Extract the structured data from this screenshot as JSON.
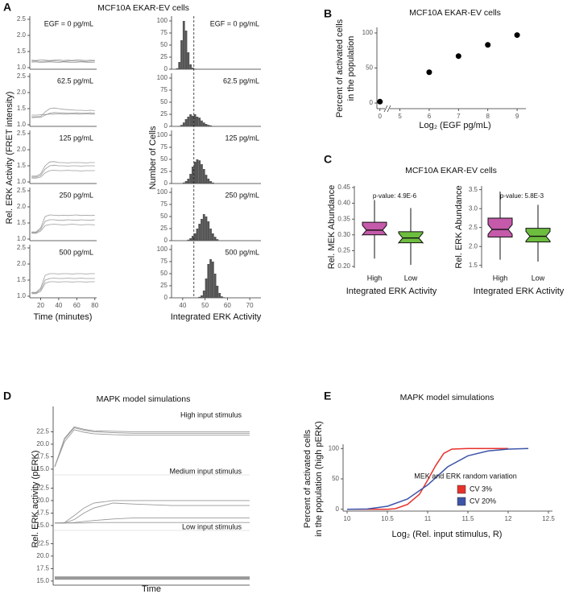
{
  "chart_data": [
    {
      "type": "line_panels",
      "label": "A",
      "title": "MCF10A EKAR-EV cells",
      "xlabel": "Time (minutes)",
      "ylabel": "Rel. ERK Activity (FRET intensity)",
      "xlim": [
        8,
        82
      ],
      "xticks": [
        20,
        40,
        60,
        80
      ],
      "ylim": [
        0.95,
        2.6
      ],
      "yticks": [
        {
          "value": 1.0,
          "label": "1.0"
        },
        1.5,
        {
          "value": 2.0,
          "label": "2.0"
        },
        2.5
      ],
      "color": "#8a8a8a",
      "x": [
        10,
        15,
        20,
        25,
        30,
        35,
        40,
        45,
        50,
        55,
        60,
        65,
        70,
        75,
        80
      ],
      "panels": [
        {
          "label": "EGF = 0 pg/mL",
          "series": [
            {
              "values": [
                1.2,
                1.21,
                1.19,
                1.2,
                1.2,
                1.21,
                1.2,
                1.19,
                1.2,
                1.21,
                1.2,
                1.2,
                1.19,
                1.2,
                1.21
              ]
            },
            {
              "values": [
                1.23,
                1.22,
                1.24,
                1.23,
                1.22,
                1.23,
                1.24,
                1.22,
                1.23,
                1.22,
                1.24,
                1.23,
                1.22,
                1.23,
                1.22
              ]
            },
            {
              "values": [
                1.17,
                1.18,
                1.16,
                1.17,
                1.18,
                1.17,
                1.16,
                1.18,
                1.17,
                1.16,
                1.17,
                1.18,
                1.17,
                1.16,
                1.17
              ]
            }
          ]
        },
        {
          "label": "62.5 pg/mL",
          "series": [
            {
              "values": [
                1.25,
                1.25,
                1.26,
                1.4,
                1.5,
                1.52,
                1.5,
                1.48,
                1.47,
                1.46,
                1.45,
                1.45,
                1.44,
                1.45,
                1.44
              ]
            },
            {
              "values": [
                1.3,
                1.3,
                1.31,
                1.32,
                1.33,
                1.33,
                1.34,
                1.33,
                1.33,
                1.34,
                1.33,
                1.33,
                1.34,
                1.33,
                1.33
              ]
            },
            {
              "values": [
                1.22,
                1.23,
                1.23,
                1.3,
                1.36,
                1.38,
                1.37,
                1.37,
                1.36,
                1.36,
                1.37,
                1.36,
                1.36,
                1.37,
                1.36
              ]
            }
          ]
        },
        {
          "label": "125 pg/mL",
          "series": [
            {
              "values": [
                1.15,
                1.15,
                1.2,
                1.4,
                1.5,
                1.52,
                1.5,
                1.5,
                1.49,
                1.5,
                1.5,
                1.49,
                1.5,
                1.5,
                1.5
              ]
            },
            {
              "values": [
                1.18,
                1.18,
                1.25,
                1.5,
                1.62,
                1.63,
                1.6,
                1.6,
                1.59,
                1.6,
                1.6,
                1.6,
                1.59,
                1.6,
                1.6
              ]
            },
            {
              "values": [
                1.12,
                1.12,
                1.15,
                1.28,
                1.35,
                1.36,
                1.35,
                1.35,
                1.36,
                1.35,
                1.35,
                1.34,
                1.35,
                1.35,
                1.35
              ]
            }
          ]
        },
        {
          "label": "250 pg/mL",
          "series": [
            {
              "values": [
                1.2,
                1.2,
                1.3,
                1.55,
                1.6,
                1.6,
                1.58,
                1.58,
                1.6,
                1.59,
                1.58,
                1.6,
                1.59,
                1.58,
                1.6
              ]
            },
            {
              "values": [
                1.22,
                1.22,
                1.35,
                1.7,
                1.75,
                1.74,
                1.73,
                1.74,
                1.73,
                1.74,
                1.75,
                1.73,
                1.74,
                1.73,
                1.74
              ]
            },
            {
              "values": [
                1.18,
                1.18,
                1.25,
                1.42,
                1.45,
                1.46,
                1.45,
                1.44,
                1.45,
                1.46,
                1.45,
                1.44,
                1.45,
                1.45,
                1.44
              ]
            }
          ]
        },
        {
          "label": "500 pg/mL",
          "series": [
            {
              "values": [
                1.1,
                1.1,
                1.2,
                1.5,
                1.55,
                1.56,
                1.55,
                1.55,
                1.56,
                1.55,
                1.55,
                1.56,
                1.55,
                1.55,
                1.55
              ]
            },
            {
              "values": [
                1.12,
                1.12,
                1.25,
                1.65,
                1.7,
                1.7,
                1.69,
                1.7,
                1.7,
                1.69,
                1.7,
                1.7,
                1.69,
                1.7,
                1.7
              ]
            },
            {
              "values": [
                1.08,
                1.08,
                1.15,
                1.4,
                1.45,
                1.45,
                1.44,
                1.45,
                1.45,
                1.44,
                1.45,
                1.45,
                1.44,
                1.45,
                1.45
              ]
            }
          ]
        }
      ]
    },
    {
      "type": "histogram_panels",
      "xlabel": "Integrated ERK Activity",
      "ylabel": "Number of Cells",
      "xlim": [
        35,
        75
      ],
      "xticks": [
        40,
        50,
        60,
        70
      ],
      "ylim": [
        0,
        110
      ],
      "yticks": [
        0,
        25,
        50,
        75,
        100
      ],
      "threshold": 45,
      "color": "#555555",
      "bins": [
        36,
        37,
        38,
        39,
        40,
        41,
        42,
        43,
        44,
        45,
        46,
        47,
        48,
        49,
        50,
        51,
        52,
        53,
        54,
        55,
        56,
        57,
        58,
        59,
        60,
        61,
        62
      ],
      "panels": [
        {
          "label": "EGF = 0 pg/mL",
          "counts": [
            0,
            2,
            15,
            60,
            100,
            80,
            35,
            10,
            3,
            1,
            0,
            0,
            0,
            0,
            0,
            0,
            0,
            0,
            0,
            0,
            0,
            0,
            0,
            0,
            0,
            0
          ]
        },
        {
          "label": "62.5 pg/mL",
          "counts": [
            0,
            0,
            1,
            3,
            8,
            15,
            20,
            25,
            22,
            25,
            20,
            18,
            12,
            8,
            5,
            3,
            2,
            0,
            0,
            0,
            0,
            0,
            0,
            0,
            0,
            0
          ]
        },
        {
          "label": "125 pg/mL",
          "counts": [
            0,
            0,
            0,
            0,
            2,
            5,
            10,
            20,
            35,
            45,
            50,
            48,
            40,
            30,
            18,
            10,
            5,
            2,
            0,
            0,
            0,
            0,
            0,
            0,
            0,
            0
          ]
        },
        {
          "label": "250 pg/mL",
          "counts": [
            0,
            0,
            0,
            0,
            0,
            0,
            2,
            5,
            10,
            15,
            25,
            35,
            45,
            55,
            50,
            40,
            25,
            15,
            8,
            3,
            0,
            0,
            0,
            0,
            0,
            0
          ]
        },
        {
          "label": "500 pg/mL",
          "counts": [
            0,
            0,
            0,
            0,
            0,
            0,
            0,
            0,
            0,
            0,
            0,
            2,
            5,
            15,
            40,
            70,
            80,
            75,
            50,
            25,
            10,
            3,
            1,
            0,
            0,
            0
          ]
        }
      ]
    },
    {
      "type": "scatter",
      "label": "B",
      "title": "MCF10A EKAR-EV cells",
      "xlabel": "Log₂ (EGF pg/mL)",
      "ylabel": [
        "Percent of activated cells",
        "in the population"
      ],
      "xlim": [
        -0.3,
        9.3
      ],
      "xbreak": [
        0.5,
        4.6
      ],
      "xticks": [
        0,
        5,
        6,
        7,
        8,
        9
      ],
      "ylim": [
        -8,
        108
      ],
      "yticks": [
        0,
        50,
        100
      ],
      "color": "#000000",
      "x": [
        0,
        6,
        7,
        8,
        9
      ],
      "values": [
        2,
        44,
        67,
        83,
        97
      ]
    },
    {
      "type": "box",
      "label": "C",
      "title": "MCF10A EKAR-EV cells",
      "colors": [
        "#c45aa9",
        "#6dbd3f"
      ],
      "panels": [
        {
          "ylabel": "Rel. MEK Abundance",
          "xlabel": "Integrated ERK Activity",
          "pvalue": "p-value: 4.9E-6",
          "ylim": [
            0.195,
            0.455
          ],
          "yticks": [
            {
              "value": 0.2,
              "label": "0.20"
            },
            0.25,
            {
              "value": 0.3,
              "label": "0.30"
            },
            0.35,
            {
              "value": 0.4,
              "label": "0.40"
            },
            0.45
          ],
          "categories": [
            "High",
            "Low"
          ],
          "boxes": [
            {
              "whislo": 0.225,
              "q1": 0.3,
              "median": 0.315,
              "q3": 0.34,
              "whishi": 0.41
            },
            {
              "whislo": 0.205,
              "q1": 0.275,
              "median": 0.29,
              "q3": 0.31,
              "whishi": 0.385
            }
          ]
        },
        {
          "ylabel": "Rel. ERK Abundance",
          "xlabel": "Integrated ERK Activity",
          "pvalue": "p-value: 5.8E-3",
          "ylim": [
            1.43,
            3.6
          ],
          "yticks": [
            1.5,
            {
              "value": 2.0,
              "label": "2.0"
            },
            2.5,
            {
              "value": 3.0,
              "label": "3.0"
            },
            3.5
          ],
          "categories": [
            "High",
            "Low"
          ],
          "boxes": [
            {
              "whislo": 1.65,
              "q1": 2.25,
              "median": 2.45,
              "q3": 2.75,
              "whishi": 3.45
            },
            {
              "whislo": 1.6,
              "q1": 2.12,
              "median": 2.27,
              "q3": 2.48,
              "whishi": 3.1
            }
          ]
        }
      ]
    },
    {
      "type": "sim_panels",
      "label": "D",
      "title": "MAPK model simulations",
      "xlabel": "Time",
      "ylabel": "Rel. ERK activity (pERK)",
      "xlim": [
        0,
        20
      ],
      "ylim": [
        14.5,
        24.5
      ],
      "yticks": [
        {
          "value": 15.0,
          "label": "15.0"
        },
        17.5,
        {
          "value": 20.0,
          "label": "20.0"
        },
        22.5
      ],
      "color": "#999999",
      "x": [
        0,
        1,
        2,
        3,
        4,
        6,
        8,
        12,
        16,
        20
      ],
      "panels": [
        {
          "label": "High input stimulus",
          "series": [
            {
              "values": [
                15.5,
                21,
                23.3,
                22.8,
                22.5,
                22.3,
                22.2,
                22.2,
                22.2,
                22.2
              ]
            },
            {
              "values": [
                15.5,
                20.5,
                22.9,
                22.4,
                22.1,
                21.9,
                21.8,
                21.8,
                21.8,
                21.8
              ]
            },
            {
              "values": [
                15.5,
                21.2,
                23.5,
                23.0,
                22.7,
                22.6,
                22.5,
                22.5,
                22.5,
                22.5
              ]
            }
          ]
        },
        {
          "label": "Medium input stimulus",
          "series": [
            {
              "values": [
                15.5,
                15.6,
                17,
                18.5,
                19.5,
                20.0,
                20.0,
                20.0,
                20.0,
                20.0
              ]
            },
            {
              "values": [
                15.5,
                15.5,
                16.2,
                17.5,
                18.5,
                19.5,
                19.3,
                19.0,
                19.0,
                19.0
              ]
            },
            {
              "values": [
                15.5,
                15.5,
                15.6,
                15.8,
                16.0,
                16.3,
                16.5,
                16.5,
                16.5,
                16.5
              ]
            },
            {
              "values": [
                15.5,
                15.5,
                15.5,
                15.5,
                15.6,
                15.6,
                15.6,
                15.6,
                15.6,
                15.6
              ]
            }
          ]
        },
        {
          "label": "Low input stimulus",
          "series": [
            {
              "values": [
                15.5,
                15.5,
                15.5,
                15.5,
                15.5,
                15.5,
                15.5,
                15.5,
                15.5,
                15.5
              ]
            },
            {
              "values": [
                15.7,
                15.7,
                15.7,
                15.7,
                15.7,
                15.7,
                15.7,
                15.7,
                15.7,
                15.7
              ]
            }
          ]
        }
      ]
    },
    {
      "type": "line",
      "label": "E",
      "title": "MAPK model simulations",
      "xlabel": "Log₂ (Rel. input stimulus, R)",
      "ylabel": [
        "Percent of activated cells",
        "in the population (high pERK)"
      ],
      "xlim": [
        9.95,
        12.55
      ],
      "xticks": [
        10,
        10.5,
        11,
        11.5,
        12,
        12.5
      ],
      "ylim": [
        -3,
        103
      ],
      "yticks": [
        0,
        50,
        100
      ],
      "legend_title": "MEK and ERK random variation",
      "series": [
        {
          "name": "CV 3%",
          "color": "#e8312a",
          "x": [
            10,
            10.25,
            10.5,
            10.6,
            10.75,
            10.9,
            11,
            11.1,
            11.2,
            11.3,
            11.5,
            12
          ],
          "values": [
            0,
            0,
            0,
            1,
            8,
            25,
            48,
            72,
            92,
            99,
            100,
            100
          ]
        },
        {
          "name": "CV 20%",
          "color": "#3d55a8",
          "x": [
            10,
            10.25,
            10.5,
            10.75,
            11,
            11.25,
            11.5,
            11.75,
            12,
            12.25
          ],
          "values": [
            0,
            0.5,
            5,
            17,
            40,
            70,
            88,
            96,
            99,
            100
          ]
        }
      ]
    }
  ]
}
